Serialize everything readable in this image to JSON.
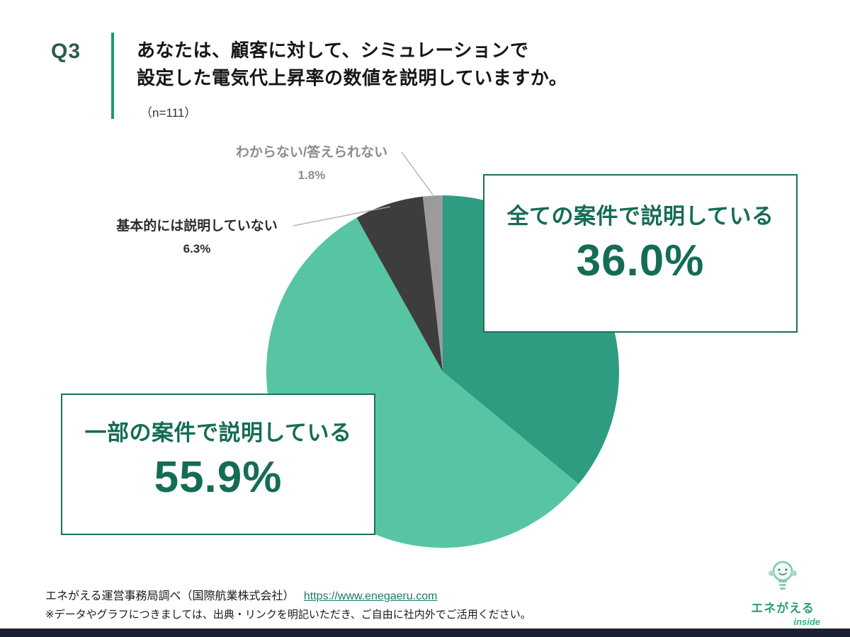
{
  "header": {
    "q_label": "Q3",
    "title_line1": "あなたは、顧客に対して、シミュレーションで",
    "title_line2": "設定した電気代上昇率の数値を説明していますか。",
    "n_label": "（n=111）"
  },
  "chart_data": {
    "type": "pie",
    "title": "顧客に対してシミュレーションで設定した電気代上昇率の数値を説明していますか",
    "n": 111,
    "start_angle_deg": 0,
    "direction": "clockwise",
    "slices": [
      {
        "label": "全ての案件で説明している",
        "value": 36.0,
        "display": "36.0%",
        "color": "#2E9C80"
      },
      {
        "label": "一部の案件で説明している",
        "value": 55.9,
        "display": "55.9%",
        "color": "#57C5A4"
      },
      {
        "label": "基本的には説明していない",
        "value": 6.3,
        "display": "6.3%",
        "color": "#3D3D3D"
      },
      {
        "label": "わからない/答えられない",
        "value": 1.8,
        "display": "1.8%",
        "color": "#9B9B9B"
      }
    ]
  },
  "footer": {
    "source_text": "エネがえる運営事務局調べ（国際航業株式会社）",
    "source_link": "https://www.enegaeru.com",
    "note": "※データやグラフにつきましては、出典・リンクを明記いただき、ご自由に社内外でご活用ください。"
  },
  "logo": {
    "brand": "エネがえる",
    "sub": "inside"
  }
}
